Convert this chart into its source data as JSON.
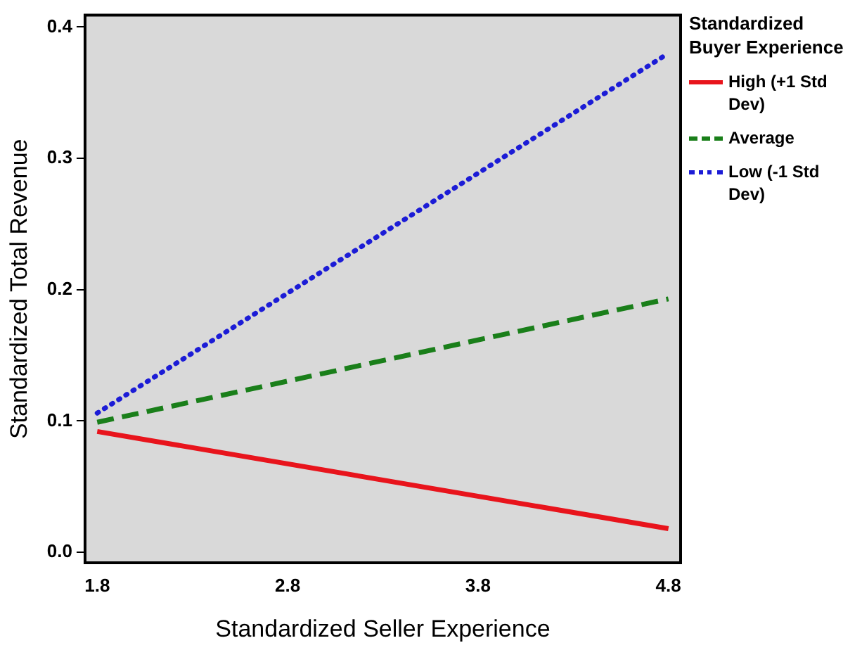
{
  "chart_data": {
    "type": "line",
    "xlabel": "Standardized Seller Experience",
    "ylabel": "Standardized Total Revenue",
    "legend_title": "Standardized Buyer Experience",
    "x": [
      1.8,
      4.8
    ],
    "series": [
      {
        "name": "High (+1 Std Dev)",
        "color": "#e8141c",
        "line_style": "solid",
        "values": [
          0.092,
          0.018
        ]
      },
      {
        "name": "Average",
        "color": "#1a7f1a",
        "line_style": "dashed",
        "values": [
          0.099,
          0.193
        ]
      },
      {
        "name": "Low (-1 Std Dev)",
        "color": "#1c1cd6",
        "line_style": "dotted",
        "values": [
          0.106,
          0.38
        ]
      }
    ],
    "xlim": [
      1.736,
      4.864
    ],
    "xticks": [
      1.8,
      2.8,
      3.8,
      4.8
    ],
    "ylim": [
      -0.008,
      0.409
    ],
    "yticks": [
      {
        "value": 0,
        "label": "0.0"
      },
      0.1,
      0.2,
      0.3,
      0.4
    ],
    "grid": false,
    "legend": "right",
    "marker": "none"
  }
}
